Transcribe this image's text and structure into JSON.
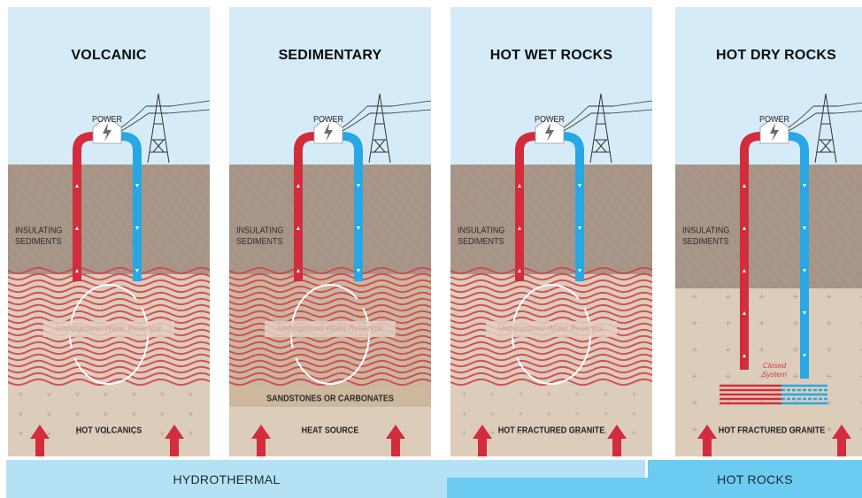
{
  "panels": [
    {
      "title": "VOLCANIC",
      "power_label": "POWER",
      "insulating_label": "INSULATING\nSEDIMENTS",
      "reservoir_label": "Underground Water Reservoir",
      "bottom_label": "HOT VOLCANICS"
    },
    {
      "title": "SEDIMENTARY",
      "power_label": "POWER",
      "insulating_label": "INSULATING\nSEDIMENTS",
      "reservoir_label": "Underground Water Reservoir",
      "layer_label": "SANDSTONES OR CARBONATES",
      "bottom_label": "HEAT SOURCE"
    },
    {
      "title": "HOT WET ROCKS",
      "power_label": "POWER",
      "insulating_label": "INSULATING\nSEDIMENTS",
      "reservoir_label": "Underground Water Reservoir",
      "bottom_label": "HOT FRACTURED GRANITE"
    },
    {
      "title": "HOT DRY ROCKS",
      "power_label": "POWER",
      "insulating_label": "INSULATING\nSEDIMENTS",
      "closed_label": "Closed\nSystem",
      "bottom_label": "HOT FRACTURED GRANITE"
    }
  ],
  "bands": {
    "hydrothermal": "HYDROTHERMAL",
    "hot_rocks": "HOT ROCKS"
  },
  "colors": {
    "sky": "#d5ecf8",
    "sediment": "#a69587",
    "rock": "#dccdbb",
    "sandstone": "#cbb79f",
    "hot_pipe": "#d32c3c",
    "cold_pipe": "#27a7e3",
    "wave": "#d1434f",
    "band": "#b4e2f4",
    "band_dark": "#6ccbf0"
  }
}
